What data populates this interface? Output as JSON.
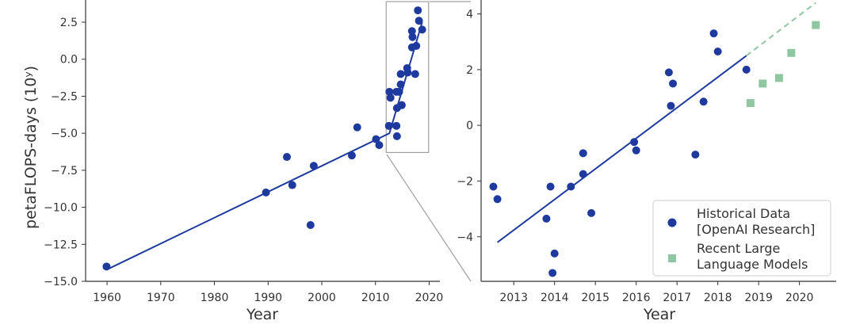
{
  "colors": {
    "historical": "#1f3a9e",
    "recent": "#8fc7a2",
    "zoom_box": "#a0a0a0",
    "axis": "#333333"
  },
  "chart_data": [
    {
      "type": "scatter",
      "title": "",
      "xlabel": "Year",
      "ylabel": "petaFLOPS-days (10ʸ)",
      "xlim": [
        1956,
        2022
      ],
      "ylim": [
        -15.0,
        4.0
      ],
      "x_ticks": [
        1960,
        1970,
        1980,
        1990,
        2000,
        2010,
        2020
      ],
      "y_ticks": [
        2.5,
        0.0,
        -2.5,
        -5.0,
        -7.5,
        -10.0,
        -12.5,
        -15.0
      ],
      "y_tick_labels": [
        "2.5",
        "0.0",
        "−2.5",
        "−5.0",
        "−7.5",
        "−10.0",
        "−12.5",
        "−15.0"
      ],
      "grid": false,
      "series": [
        {
          "name": "Historical Data [OpenAI Research]",
          "points": [
            [
              1959.9,
              -14.0
            ],
            [
              1989.6,
              -9.0
            ],
            [
              1993.5,
              -6.6
            ],
            [
              1994.5,
              -8.5
            ],
            [
              1997.9,
              -11.2
            ],
            [
              1998.5,
              -7.2
            ],
            [
              2005.6,
              -6.5
            ],
            [
              2006.6,
              -4.6
            ],
            [
              2010.1,
              -5.4
            ],
            [
              2010.7,
              -5.8
            ],
            [
              2012.5,
              -4.5
            ],
            [
              2012.6,
              -2.2
            ],
            [
              2012.8,
              -2.6
            ],
            [
              2013.9,
              -2.2
            ],
            [
              2013.9,
              -4.5
            ],
            [
              2014.0,
              -3.3
            ],
            [
              2014.0,
              -5.2
            ],
            [
              2014.4,
              -2.2
            ],
            [
              2014.7,
              -1.7
            ],
            [
              2014.7,
              -1.0
            ],
            [
              2014.9,
              -3.1
            ],
            [
              2015.9,
              -0.6
            ],
            [
              2016.0,
              -0.9
            ],
            [
              2016.8,
              0.8
            ],
            [
              2016.9,
              1.5
            ],
            [
              2016.8,
              1.9
            ],
            [
              2017.4,
              -1.0
            ],
            [
              2017.6,
              0.9
            ],
            [
              2017.9,
              3.3
            ],
            [
              2018.1,
              2.6
            ],
            [
              2018.7,
              2.0
            ]
          ]
        }
      ],
      "fit_line": [
        [
          1960,
          -14.2
        ],
        [
          2012.6,
          -5.0
        ],
        [
          2018.7,
          2.5
        ]
      ],
      "zoom_box": {
        "x_range": [
          2012,
          2019.9
        ],
        "y_range": [
          -6.3,
          4.0
        ]
      }
    },
    {
      "type": "scatter",
      "title": "",
      "xlabel": "Year",
      "ylabel": "",
      "xlim": [
        2012.2,
        2020.9
      ],
      "ylim": [
        -5.6,
        4.5
      ],
      "x_ticks": [
        2013,
        2014,
        2015,
        2016,
        2017,
        2018,
        2019,
        2020
      ],
      "y_ticks": [
        4,
        2,
        0,
        -2,
        -4
      ],
      "y_tick_labels": [
        "4",
        "2",
        "0",
        "−2",
        "−4"
      ],
      "grid": false,
      "legend_position": "bottom-right",
      "series": [
        {
          "name": "Historical Data [OpenAI Research]",
          "legend_lines": [
            "Historical Data",
            "[OpenAI Research]"
          ],
          "marker": "circle",
          "points": [
            [
              2012.5,
              -2.2
            ],
            [
              2012.6,
              -2.65
            ],
            [
              2013.8,
              -3.35
            ],
            [
              2013.9,
              -2.2
            ],
            [
              2014.0,
              -4.6
            ],
            [
              2013.95,
              -5.3
            ],
            [
              2014.4,
              -2.2
            ],
            [
              2014.7,
              -1.0
            ],
            [
              2014.7,
              -1.75
            ],
            [
              2014.9,
              -3.15
            ],
            [
              2015.95,
              -0.6
            ],
            [
              2016.0,
              -0.9
            ],
            [
              2016.8,
              1.9
            ],
            [
              2016.9,
              1.5
            ],
            [
              2016.85,
              0.7
            ],
            [
              2017.45,
              -1.05
            ],
            [
              2017.65,
              0.85
            ],
            [
              2017.9,
              3.3
            ],
            [
              2018.0,
              2.65
            ],
            [
              2018.7,
              2.0
            ]
          ]
        },
        {
          "name": "Recent Large Language Models",
          "legend_lines": [
            "Recent Large",
            "Language Models"
          ],
          "marker": "square",
          "points": [
            [
              2018.8,
              0.8
            ],
            [
              2019.1,
              1.5
            ],
            [
              2019.5,
              1.7
            ],
            [
              2019.8,
              2.6
            ],
            [
              2020.4,
              3.6
            ]
          ]
        }
      ],
      "fit_line": [
        [
          2012.6,
          -4.2
        ],
        [
          2018.7,
          2.5
        ]
      ],
      "fit_line_extension": [
        [
          2018.7,
          2.5
        ],
        [
          2020.4,
          4.4
        ]
      ]
    }
  ]
}
